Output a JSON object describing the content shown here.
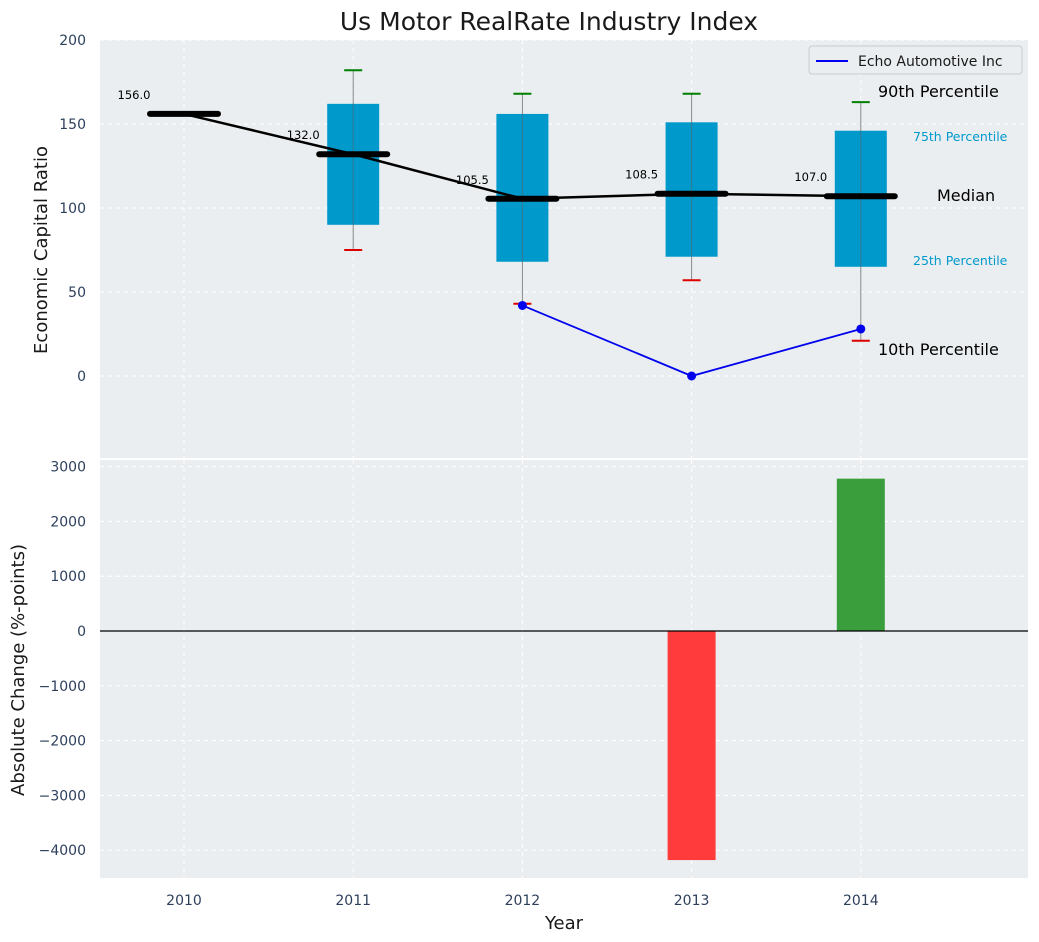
{
  "chart_data": [
    {
      "type": "box",
      "title": "Us Motor RealRate Industry Index",
      "ylabel": "Economic Capital Ratio",
      "ylim": [
        -50,
        200
      ],
      "yticks": [
        0,
        50,
        100,
        150,
        200
      ],
      "grid": true,
      "legend": {
        "position": "top-right",
        "entries": [
          "Echo Automotive Inc"
        ]
      },
      "categories": [
        2010,
        2011,
        2012,
        2013,
        2014
      ],
      "industry": [
        {
          "year": 2010,
          "p10": null,
          "p25": null,
          "median": 156.0,
          "p75": null,
          "p90": null
        },
        {
          "year": 2011,
          "p10": 75,
          "p25": 90,
          "median": 132.0,
          "p75": 162,
          "p90": 182
        },
        {
          "year": 2012,
          "p10": 43,
          "p25": 68,
          "median": 105.5,
          "p75": 156,
          "p90": 168
        },
        {
          "year": 2013,
          "p10": 57,
          "p25": 71,
          "median": 108.5,
          "p75": 151,
          "p90": 168
        },
        {
          "year": 2014,
          "p10": 21,
          "p25": 65,
          "median": 107.0,
          "p75": 146,
          "p90": 163
        }
      ],
      "median_labels": [
        "156.0",
        "132.0",
        "105.5",
        "108.5",
        "107.0"
      ],
      "series": [
        {
          "name": "Echo Automotive Inc",
          "x": [
            2012,
            2013,
            2014
          ],
          "values": [
            42,
            0,
            28
          ],
          "color": "#0000ee"
        }
      ],
      "annotations": {
        "p90": "90th Percentile",
        "p75": "75th Percentile",
        "median": "Median",
        "p25": "25th Percentile",
        "p10": "10th Percentile"
      },
      "colors": {
        "box": "#0099cc",
        "median": "#000000",
        "whisker_top": "#008000",
        "whisker_bottom": "#dd0000",
        "background": "#eaeef0"
      }
    },
    {
      "type": "bar",
      "ylabel": "Absolute Change (%-points)",
      "xlabel": "Year",
      "ylim": [
        -4500,
        3000
      ],
      "yticks": [
        -4000,
        -3000,
        -2000,
        -1000,
        0,
        1000,
        2000,
        3000
      ],
      "categories": [
        2010,
        2011,
        2012,
        2013,
        2014
      ],
      "values": [
        null,
        null,
        null,
        -4180,
        2780
      ],
      "colors": {
        "positive": "#3a9e3d",
        "negative": "#ff3b3b"
      }
    }
  ]
}
